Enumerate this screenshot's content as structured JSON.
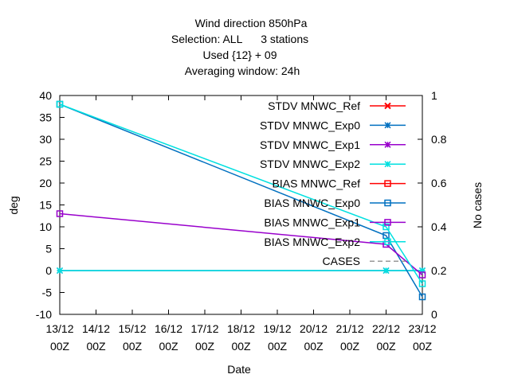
{
  "chart_data": {
    "type": "line",
    "title_lines": [
      "Wind direction 850hPa",
      "Selection: ALL      3 stations",
      "Used {12} + 09",
      "Averaging window: 24h"
    ],
    "xlabel": "Date",
    "ylabel": "deg",
    "y2label": "No cases",
    "categories": [
      "13/12",
      "14/12",
      "15/12",
      "16/12",
      "17/12",
      "18/12",
      "19/12",
      "20/12",
      "21/12",
      "22/12",
      "23/12"
    ],
    "category_sublabel": "00Z",
    "ylim": [
      -10,
      40
    ],
    "yticks": [
      -10,
      -5,
      0,
      5,
      10,
      15,
      20,
      25,
      30,
      35,
      40
    ],
    "y2lim": [
      0,
      1
    ],
    "y2ticks": [
      "0",
      "0.2",
      "0.4",
      "0.6",
      "0.8",
      "1"
    ],
    "grid": false,
    "legend_position": "top-right",
    "series": [
      {
        "name": "STDV MNWC_Ref",
        "color": "#ff0000",
        "marker": "x",
        "points": []
      },
      {
        "name": "STDV MNWC_Exp0",
        "color": "#0070c0",
        "marker": "star",
        "points": [
          [
            0,
            0
          ],
          [
            9,
            0
          ],
          [
            10,
            0
          ]
        ]
      },
      {
        "name": "STDV MNWC_Exp1",
        "color": "#9900cc",
        "marker": "star",
        "points": []
      },
      {
        "name": "STDV MNWC_Exp2",
        "color": "#00e0e0",
        "marker": "star",
        "points": [
          [
            0,
            0
          ],
          [
            9,
            0
          ],
          [
            10,
            0
          ]
        ]
      },
      {
        "name": "BIAS MNWC_Ref",
        "color": "#ff0000",
        "marker": "square",
        "points": []
      },
      {
        "name": "BIAS MNWC_Exp0",
        "color": "#0070c0",
        "marker": "square",
        "points": [
          [
            0,
            38
          ],
          [
            9,
            8
          ],
          [
            10,
            -6
          ]
        ]
      },
      {
        "name": "BIAS MNWC_Exp1",
        "color": "#9900cc",
        "marker": "square",
        "points": [
          [
            0,
            13
          ],
          [
            9,
            6
          ],
          [
            10,
            -1
          ]
        ]
      },
      {
        "name": "BIAS MNWC_Exp2",
        "color": "#00e0e0",
        "marker": "square",
        "points": [
          [
            0,
            38
          ],
          [
            9,
            10
          ],
          [
            10,
            -3
          ]
        ]
      },
      {
        "name": "CASES",
        "color": "#999999",
        "marker": "none",
        "points": []
      }
    ]
  }
}
